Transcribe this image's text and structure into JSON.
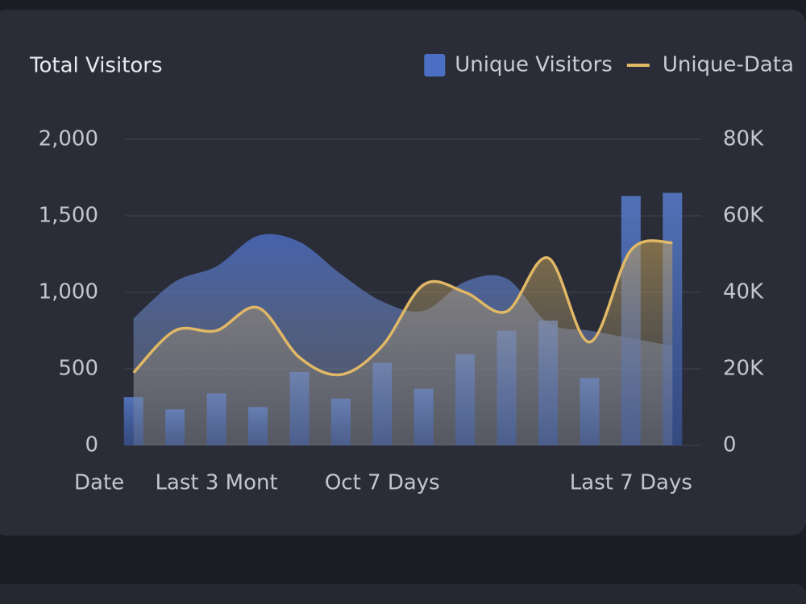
{
  "chart_data": {
    "type": "bar-line",
    "title": "Total Visitors",
    "xlabel": "Date",
    "categories": [
      null,
      null,
      "Last 3 Mont",
      null,
      null,
      null,
      "Oct 7 Days",
      null,
      null,
      null,
      null,
      null,
      "Last 7 Days",
      null
    ],
    "series": [
      {
        "name": "Unique Visitors",
        "type": "bar",
        "axis": "y",
        "color": "#4a6fc4",
        "values": [
          315,
          235,
          340,
          250,
          480,
          305,
          540,
          370,
          595,
          750,
          815,
          440,
          1630,
          1650
        ]
      },
      {
        "name": "Unique-Data",
        "type": "line",
        "axis": "y2",
        "color": "#e0b866",
        "values": [
          19000,
          30000,
          30000,
          36000,
          23000,
          18500,
          26000,
          42000,
          40000,
          35000,
          49000,
          27000,
          51000,
          53000
        ]
      },
      {
        "type": "area",
        "axis": "y",
        "color": "#4563b0",
        "values": [
          830,
          1070,
          1170,
          1370,
          1330,
          1120,
          940,
          880,
          1070,
          1090,
          800,
          750,
          700,
          650
        ]
      }
    ],
    "ylim": [
      0,
      2000
    ],
    "yticks": [
      0,
      500,
      {
        "value": 1000,
        "label": "1,000"
      },
      {
        "value": 1500,
        "label": "1,500"
      },
      {
        "value": 2000,
        "label": "2,000"
      }
    ],
    "y2lim": [
      0,
      80000
    ],
    "y2ticks": [
      0,
      {
        "value": 20000,
        "label": "20K"
      },
      {
        "value": 40000,
        "label": "40K"
      },
      {
        "value": 60000,
        "label": "60K"
      },
      {
        "value": 80000,
        "label": "80K"
      }
    ],
    "grid": true,
    "legend": "top-right"
  }
}
